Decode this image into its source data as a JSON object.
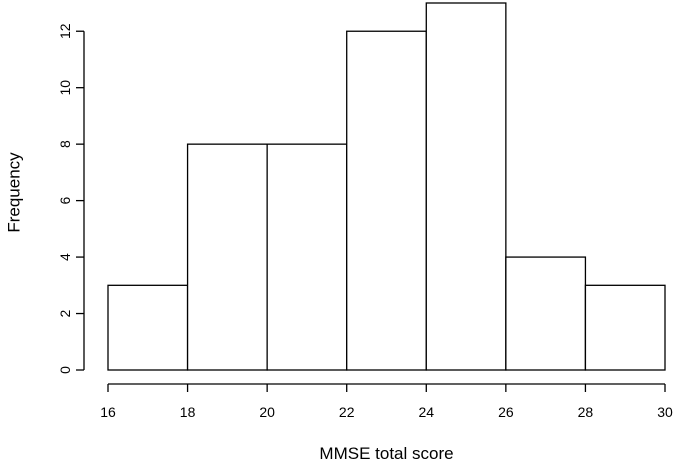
{
  "chart_data": {
    "type": "bar",
    "subtype": "histogram",
    "title": "",
    "xlabel": "MMSE total score",
    "ylabel": "Frequency",
    "bins": [
      {
        "start": 16,
        "end": 18,
        "count": 3
      },
      {
        "start": 18,
        "end": 20,
        "count": 8
      },
      {
        "start": 20,
        "end": 22,
        "count": 8
      },
      {
        "start": 22,
        "end": 24,
        "count": 12
      },
      {
        "start": 24,
        "end": 26,
        "count": 13
      },
      {
        "start": 26,
        "end": 28,
        "count": 4
      },
      {
        "start": 28,
        "end": 30,
        "count": 3
      }
    ],
    "xlim": [
      16,
      30
    ],
    "ylim": [
      0,
      13
    ],
    "x_ticks": [
      16,
      18,
      20,
      22,
      24,
      26,
      28,
      30
    ],
    "y_ticks": [
      0,
      2,
      4,
      6,
      8,
      10,
      12
    ],
    "bar_fill": "#ffffff",
    "bar_stroke": "#000000",
    "grid": false,
    "legend": "none"
  }
}
